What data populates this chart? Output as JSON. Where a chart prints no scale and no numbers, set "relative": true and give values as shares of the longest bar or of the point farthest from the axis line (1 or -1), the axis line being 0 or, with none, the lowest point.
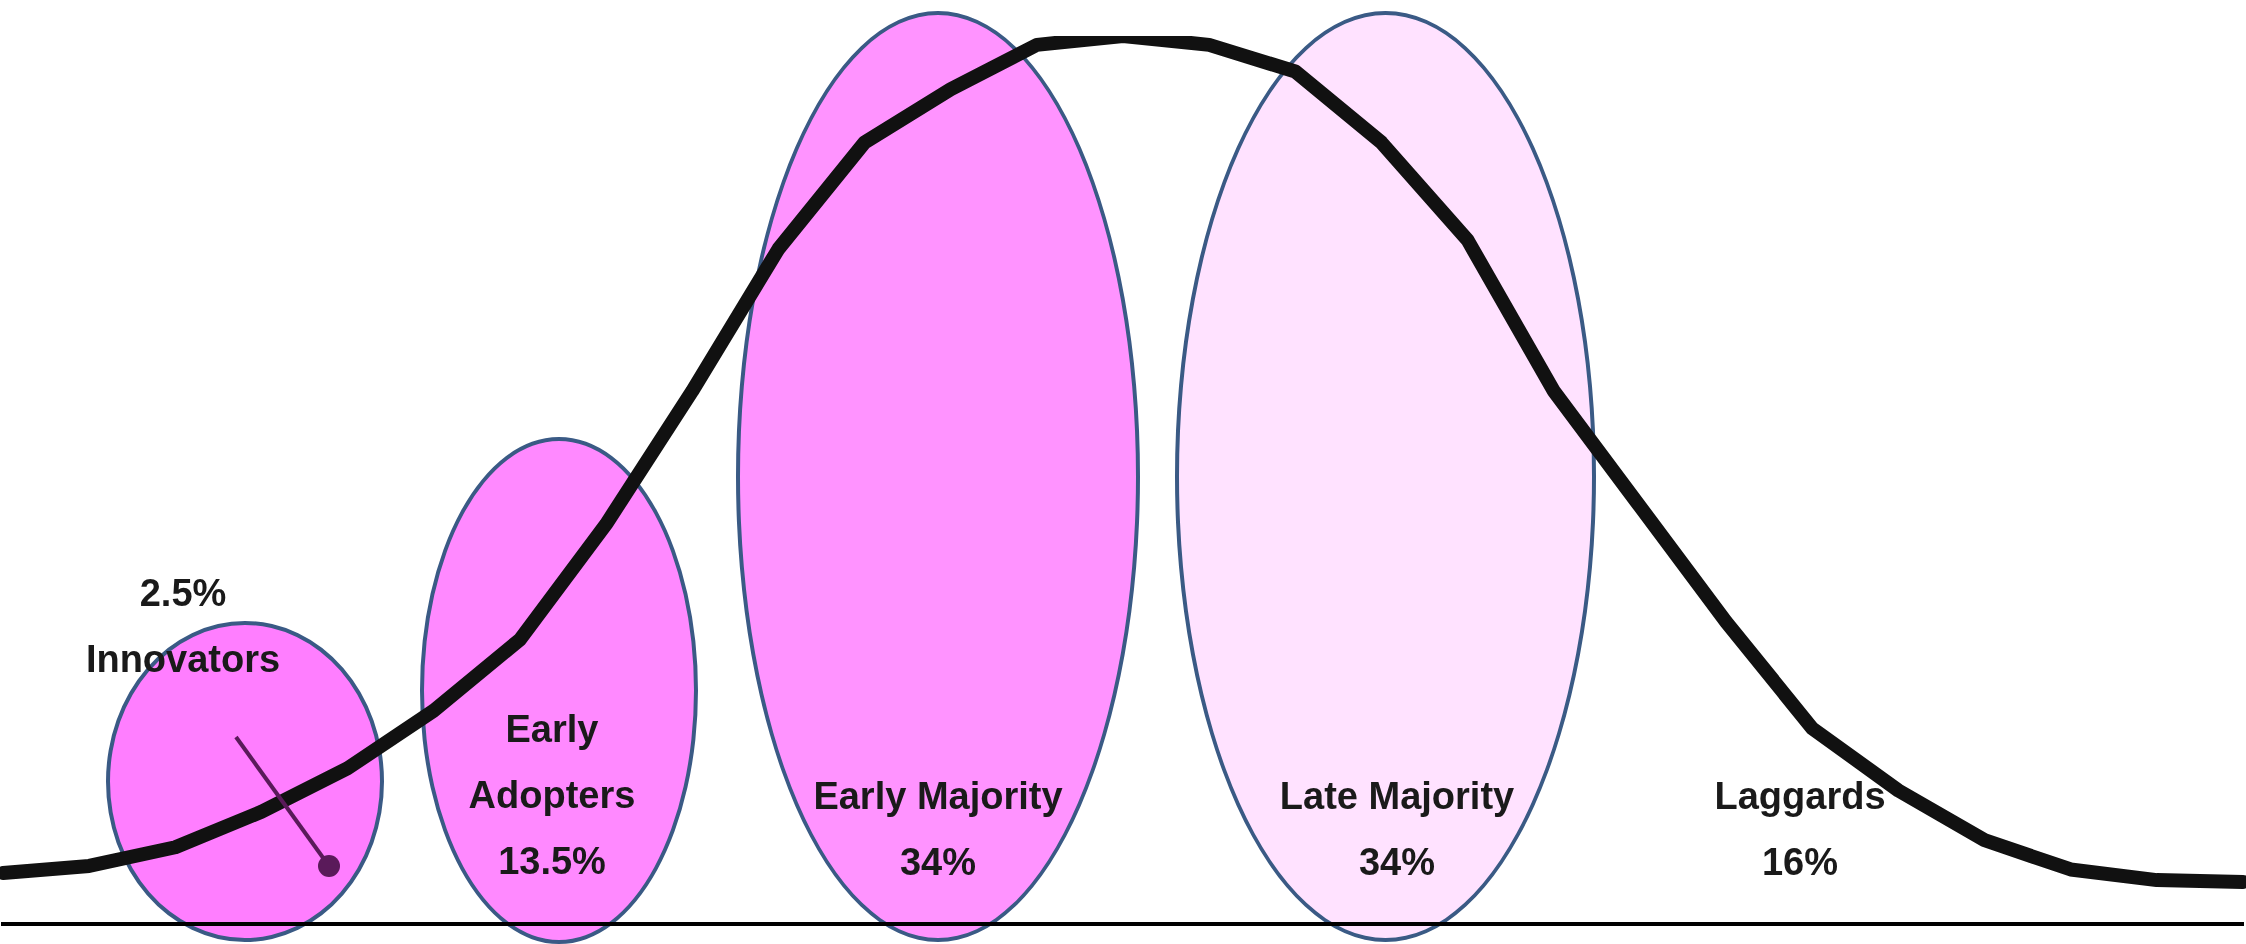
{
  "chart_data": {
    "type": "line",
    "relative": true,
    "grid": false,
    "legend": false,
    "marker": "none",
    "line_style": "solid",
    "categories": [
      null,
      null,
      null,
      null,
      null,
      null,
      null,
      null,
      null,
      null,
      null,
      null,
      null,
      null,
      null,
      null,
      null,
      null,
      null,
      null,
      null,
      null,
      null,
      null,
      null,
      null,
      null
    ],
    "series": [
      {
        "color": "#111111",
        "values": [
          0.057,
          0.065,
          0.086,
          0.126,
          0.175,
          0.24,
          0.32,
          0.45,
          0.6,
          0.76,
          0.88,
          0.94,
          0.99,
          1,
          0.99,
          0.96,
          0.88,
          0.77,
          0.6,
          0.47,
          0.34,
          0.22,
          0.15,
          0.094,
          0.061,
          0.049,
          0.047
        ]
      }
    ],
    "annotations": [
      "2.5%\nInnovators",
      "Early\nAdopters\n13.5%",
      "Early Majority\n34%",
      "Late Majority\n34%",
      "Laggards\n16%"
    ]
  }
}
